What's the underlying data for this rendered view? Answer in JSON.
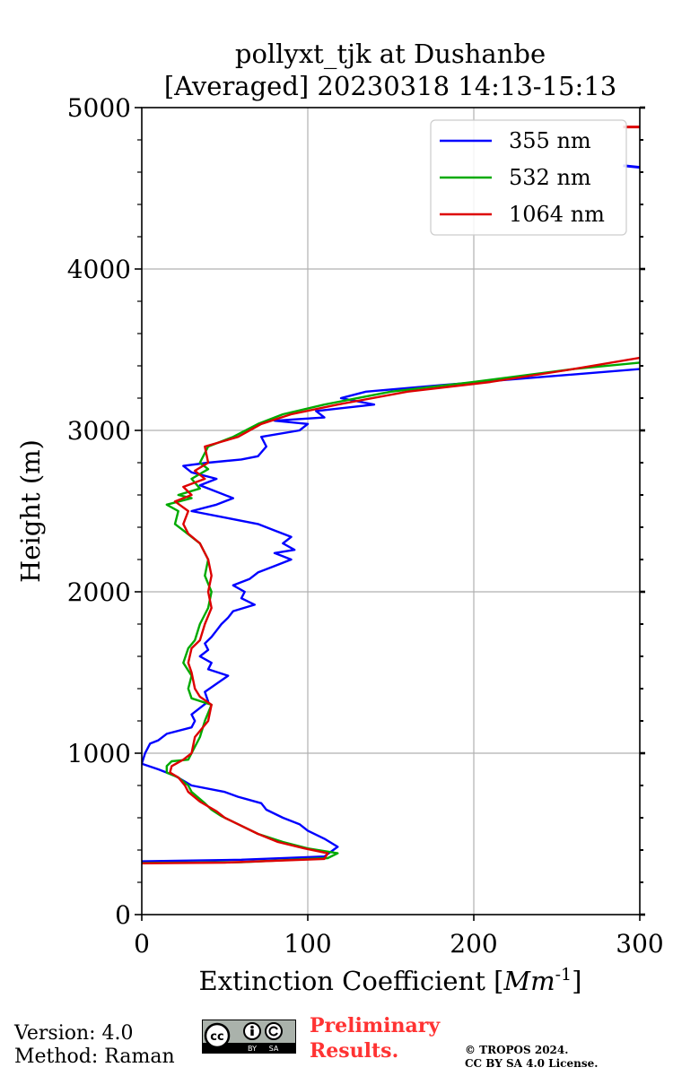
{
  "chart_data": {
    "type": "line",
    "title": [
      "pollyxt_tjk at Dushanbe",
      "[Averaged] 20230318 14:13-15:13"
    ],
    "xlabel": "Extinction Coefficient [",
    "xlabel_unit": "Mm",
    "xlabel_exp": "-1",
    "xlabel_end": "]",
    "ylabel": "Height (m)",
    "xlim": [
      0,
      300
    ],
    "ylim": [
      0,
      5000
    ],
    "xticks": [
      0,
      100,
      200,
      300
    ],
    "xtick_labels": [
      "0",
      "100",
      "200",
      "300"
    ],
    "yticks": [
      0,
      1000,
      2000,
      3000,
      4000,
      5000
    ],
    "ytick_labels": [
      "0",
      "1000",
      "2000",
      "3000",
      "4000",
      "5000"
    ],
    "grid": true,
    "legend_position": "top-right",
    "series": [
      {
        "name": "355 nm",
        "color": "#0000ff",
        "points": [
          [
            0,
            330
          ],
          [
            60,
            340
          ],
          [
            110,
            360
          ],
          [
            118,
            420
          ],
          [
            110,
            470
          ],
          [
            100,
            520
          ],
          [
            95,
            560
          ],
          [
            85,
            600
          ],
          [
            75,
            650
          ],
          [
            72,
            690
          ],
          [
            58,
            730
          ],
          [
            50,
            760
          ],
          [
            30,
            800
          ],
          [
            20,
            860
          ],
          [
            10,
            900
          ],
          [
            0,
            935
          ],
          [
            2,
            1000
          ],
          [
            5,
            1060
          ],
          [
            10,
            1080
          ],
          [
            15,
            1120
          ],
          [
            30,
            1160
          ],
          [
            32,
            1200
          ],
          [
            30,
            1240
          ],
          [
            35,
            1280
          ],
          [
            40,
            1320
          ],
          [
            38,
            1380
          ],
          [
            52,
            1480
          ],
          [
            40,
            1520
          ],
          [
            42,
            1560
          ],
          [
            35,
            1600
          ],
          [
            40,
            1640
          ],
          [
            38,
            1680
          ],
          [
            42,
            1720
          ],
          [
            45,
            1760
          ],
          [
            48,
            1800
          ],
          [
            52,
            1840
          ],
          [
            55,
            1880
          ],
          [
            68,
            1920
          ],
          [
            60,
            1960
          ],
          [
            62,
            2000
          ],
          [
            55,
            2040
          ],
          [
            65,
            2080
          ],
          [
            70,
            2120
          ],
          [
            80,
            2160
          ],
          [
            90,
            2200
          ],
          [
            80,
            2240
          ],
          [
            92,
            2260
          ],
          [
            85,
            2300
          ],
          [
            90,
            2340
          ],
          [
            80,
            2380
          ],
          [
            70,
            2420
          ],
          [
            50,
            2460
          ],
          [
            30,
            2500
          ],
          [
            45,
            2540
          ],
          [
            55,
            2580
          ],
          [
            40,
            2640
          ],
          [
            35,
            2660
          ],
          [
            45,
            2700
          ],
          [
            30,
            2740
          ],
          [
            25,
            2780
          ],
          [
            40,
            2800
          ],
          [
            60,
            2820
          ],
          [
            70,
            2840
          ],
          [
            75,
            2900
          ],
          [
            72,
            2960
          ],
          [
            95,
            3000
          ],
          [
            100,
            3040
          ],
          [
            80,
            3060
          ],
          [
            110,
            3080
          ],
          [
            105,
            3120
          ],
          [
            140,
            3160
          ],
          [
            120,
            3200
          ],
          [
            135,
            3240
          ],
          [
            180,
            3280
          ],
          [
            240,
            3330
          ],
          [
            300,
            3380
          ]
        ]
      },
      {
        "name": "532 nm",
        "color": "#00aa00",
        "points": [
          [
            0,
            320
          ],
          [
            60,
            325
          ],
          [
            112,
            350
          ],
          [
            118,
            380
          ],
          [
            100,
            410
          ],
          [
            85,
            450
          ],
          [
            70,
            500
          ],
          [
            58,
            560
          ],
          [
            48,
            610
          ],
          [
            42,
            650
          ],
          [
            38,
            690
          ],
          [
            30,
            760
          ],
          [
            28,
            800
          ],
          [
            22,
            850
          ],
          [
            15,
            880
          ],
          [
            15,
            920
          ],
          [
            18,
            950
          ],
          [
            28,
            960
          ],
          [
            30,
            1000
          ],
          [
            35,
            1100
          ],
          [
            38,
            1200
          ],
          [
            42,
            1300
          ],
          [
            30,
            1340
          ],
          [
            28,
            1400
          ],
          [
            30,
            1480
          ],
          [
            25,
            1560
          ],
          [
            28,
            1650
          ],
          [
            32,
            1700
          ],
          [
            35,
            1800
          ],
          [
            40,
            1900
          ],
          [
            42,
            2000
          ],
          [
            38,
            2100
          ],
          [
            40,
            2200
          ],
          [
            35,
            2300
          ],
          [
            25,
            2380
          ],
          [
            20,
            2420
          ],
          [
            22,
            2500
          ],
          [
            15,
            2540
          ],
          [
            30,
            2580
          ],
          [
            22,
            2600
          ],
          [
            35,
            2640
          ],
          [
            30,
            2700
          ],
          [
            40,
            2760
          ],
          [
            35,
            2800
          ],
          [
            40,
            2900
          ],
          [
            55,
            2960
          ],
          [
            70,
            3040
          ],
          [
            85,
            3100
          ],
          [
            110,
            3160
          ],
          [
            150,
            3240
          ],
          [
            200,
            3300
          ],
          [
            260,
            3380
          ],
          [
            300,
            3420
          ]
        ]
      },
      {
        "name": "1064 nm",
        "color": "#dd0000",
        "points": [
          [
            0,
            318
          ],
          [
            50,
            322
          ],
          [
            110,
            345
          ],
          [
            112,
            380
          ],
          [
            98,
            410
          ],
          [
            82,
            450
          ],
          [
            70,
            500
          ],
          [
            58,
            560
          ],
          [
            50,
            600
          ],
          [
            45,
            640
          ],
          [
            35,
            700
          ],
          [
            28,
            760
          ],
          [
            26,
            800
          ],
          [
            22,
            850
          ],
          [
            17,
            880
          ],
          [
            18,
            920
          ],
          [
            25,
            960
          ],
          [
            30,
            1000
          ],
          [
            32,
            1100
          ],
          [
            40,
            1200
          ],
          [
            42,
            1300
          ],
          [
            35,
            1350
          ],
          [
            32,
            1400
          ],
          [
            30,
            1500
          ],
          [
            28,
            1560
          ],
          [
            30,
            1650
          ],
          [
            35,
            1700
          ],
          [
            38,
            1800
          ],
          [
            42,
            1900
          ],
          [
            40,
            2000
          ],
          [
            42,
            2100
          ],
          [
            40,
            2200
          ],
          [
            35,
            2300
          ],
          [
            28,
            2360
          ],
          [
            25,
            2420
          ],
          [
            28,
            2500
          ],
          [
            20,
            2560
          ],
          [
            30,
            2600
          ],
          [
            25,
            2650
          ],
          [
            38,
            2700
          ],
          [
            32,
            2750
          ],
          [
            40,
            2800
          ],
          [
            38,
            2900
          ],
          [
            58,
            2960
          ],
          [
            72,
            3040
          ],
          [
            90,
            3100
          ],
          [
            118,
            3160
          ],
          [
            160,
            3240
          ],
          [
            210,
            3300
          ],
          [
            260,
            3380
          ],
          [
            300,
            3450
          ]
        ]
      }
    ],
    "offscale_marks": [
      {
        "series": "1064 nm",
        "points": [
          [
            290,
            4880
          ],
          [
            300,
            4880
          ]
        ]
      },
      {
        "series": "355 nm",
        "points": [
          [
            290,
            4640
          ],
          [
            300,
            4630
          ]
        ]
      }
    ]
  },
  "footer": {
    "version": "Version: 4.0",
    "method": "Method: Raman",
    "license_badge": {
      "cc": "cc",
      "by": "BY",
      "sa": "SA"
    },
    "preliminary": [
      "Preliminary",
      "Results."
    ],
    "copyright": [
      "© TROPOS 2024.",
      "CC BY SA 4.0 License."
    ]
  }
}
